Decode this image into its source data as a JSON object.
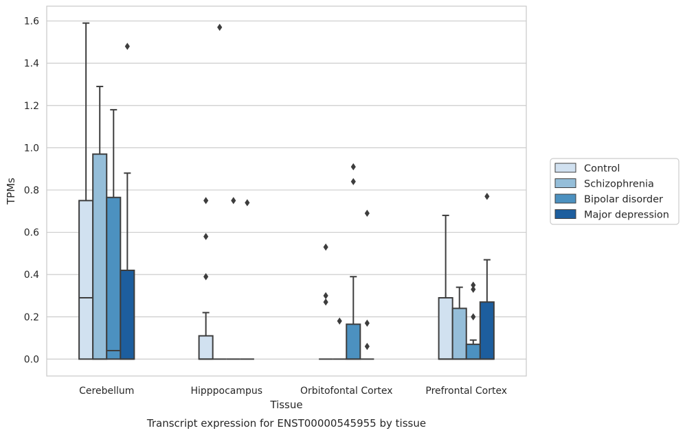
{
  "chart_data": {
    "type": "boxplot",
    "title": "",
    "caption": "Transcript expression for ENST00000545955 by tissue",
    "xlabel": "Tissue",
    "ylabel": "TPMs",
    "ylim": [
      -0.08,
      1.67
    ],
    "yticks": [
      0.0,
      0.2,
      0.4,
      0.6,
      0.8,
      1.0,
      1.2,
      1.4,
      1.6
    ],
    "ytick_labels": [
      "0.0",
      "0.2",
      "0.4",
      "0.6",
      "0.8",
      "1.0",
      "1.2",
      "1.4",
      "1.6"
    ],
    "grid": "horizontal",
    "legend_placement": "outside-right",
    "categories": [
      "Cerebellum",
      "Hipppocampus",
      "Orbitofontal Cortex",
      "Prefrontal Cortex"
    ],
    "series": [
      {
        "name": "Control",
        "color": "#d1e1f0",
        "boxes": [
          {
            "q1": 0.0,
            "median": 0.29,
            "q3": 0.75,
            "whisker_low": 0.0,
            "whisker_high": 1.59,
            "outliers": []
          },
          {
            "q1": 0.0,
            "median": 0.0,
            "q3": 0.11,
            "whisker_low": 0.0,
            "whisker_high": 0.22,
            "outliers": [
              0.39,
              0.58,
              0.75
            ]
          },
          {
            "q1": 0.0,
            "median": 0.0,
            "q3": 0.0,
            "whisker_low": 0.0,
            "whisker_high": 0.0,
            "outliers": [
              0.27,
              0.3,
              0.53
            ]
          },
          {
            "q1": 0.0,
            "median": 0.0,
            "q3": 0.29,
            "whisker_low": 0.0,
            "whisker_high": 0.68,
            "outliers": []
          }
        ]
      },
      {
        "name": "Schizophrenia",
        "color": "#95bed9",
        "boxes": [
          {
            "q1": 0.0,
            "median": 0.0,
            "q3": 0.97,
            "whisker_low": 0.0,
            "whisker_high": 1.29,
            "outliers": []
          },
          {
            "q1": 0.0,
            "median": 0.0,
            "q3": 0.0,
            "whisker_low": 0.0,
            "whisker_high": 0.0,
            "outliers": [
              1.57
            ]
          },
          {
            "q1": 0.0,
            "median": 0.0,
            "q3": 0.0,
            "whisker_low": 0.0,
            "whisker_high": 0.0,
            "outliers": [
              0.18
            ]
          },
          {
            "q1": 0.0,
            "median": 0.0,
            "q3": 0.24,
            "whisker_low": 0.0,
            "whisker_high": 0.34,
            "outliers": []
          }
        ]
      },
      {
        "name": "Bipolar disorder",
        "color": "#4c91c0",
        "boxes": [
          {
            "q1": 0.0,
            "median": 0.04,
            "q3": 0.765,
            "whisker_low": 0.0,
            "whisker_high": 1.18,
            "outliers": []
          },
          {
            "q1": 0.0,
            "median": 0.0,
            "q3": 0.0,
            "whisker_low": 0.0,
            "whisker_high": 0.0,
            "outliers": [
              0.75
            ]
          },
          {
            "q1": 0.0,
            "median": 0.0,
            "q3": 0.165,
            "whisker_low": 0.0,
            "whisker_high": 0.39,
            "outliers": [
              0.84,
              0.91
            ]
          },
          {
            "q1": 0.0,
            "median": 0.0,
            "q3": 0.07,
            "whisker_low": 0.0,
            "whisker_high": 0.09,
            "outliers": [
              0.2,
              0.33,
              0.35
            ]
          }
        ]
      },
      {
        "name": "Major depression",
        "color": "#1d5e9e",
        "boxes": [
          {
            "q1": 0.0,
            "median": 0.0,
            "q3": 0.42,
            "whisker_low": 0.0,
            "whisker_high": 0.88,
            "outliers": [
              1.48
            ]
          },
          {
            "q1": 0.0,
            "median": 0.0,
            "q3": 0.0,
            "whisker_low": 0.0,
            "whisker_high": 0.0,
            "outliers": [
              0.74
            ]
          },
          {
            "q1": 0.0,
            "median": 0.0,
            "q3": 0.0,
            "whisker_low": 0.0,
            "whisker_high": 0.0,
            "outliers": [
              0.06,
              0.17,
              0.69
            ]
          },
          {
            "q1": 0.0,
            "median": 0.0,
            "q3": 0.27,
            "whisker_low": 0.0,
            "whisker_high": 0.47,
            "outliers": [
              0.77
            ]
          }
        ]
      }
    ]
  }
}
